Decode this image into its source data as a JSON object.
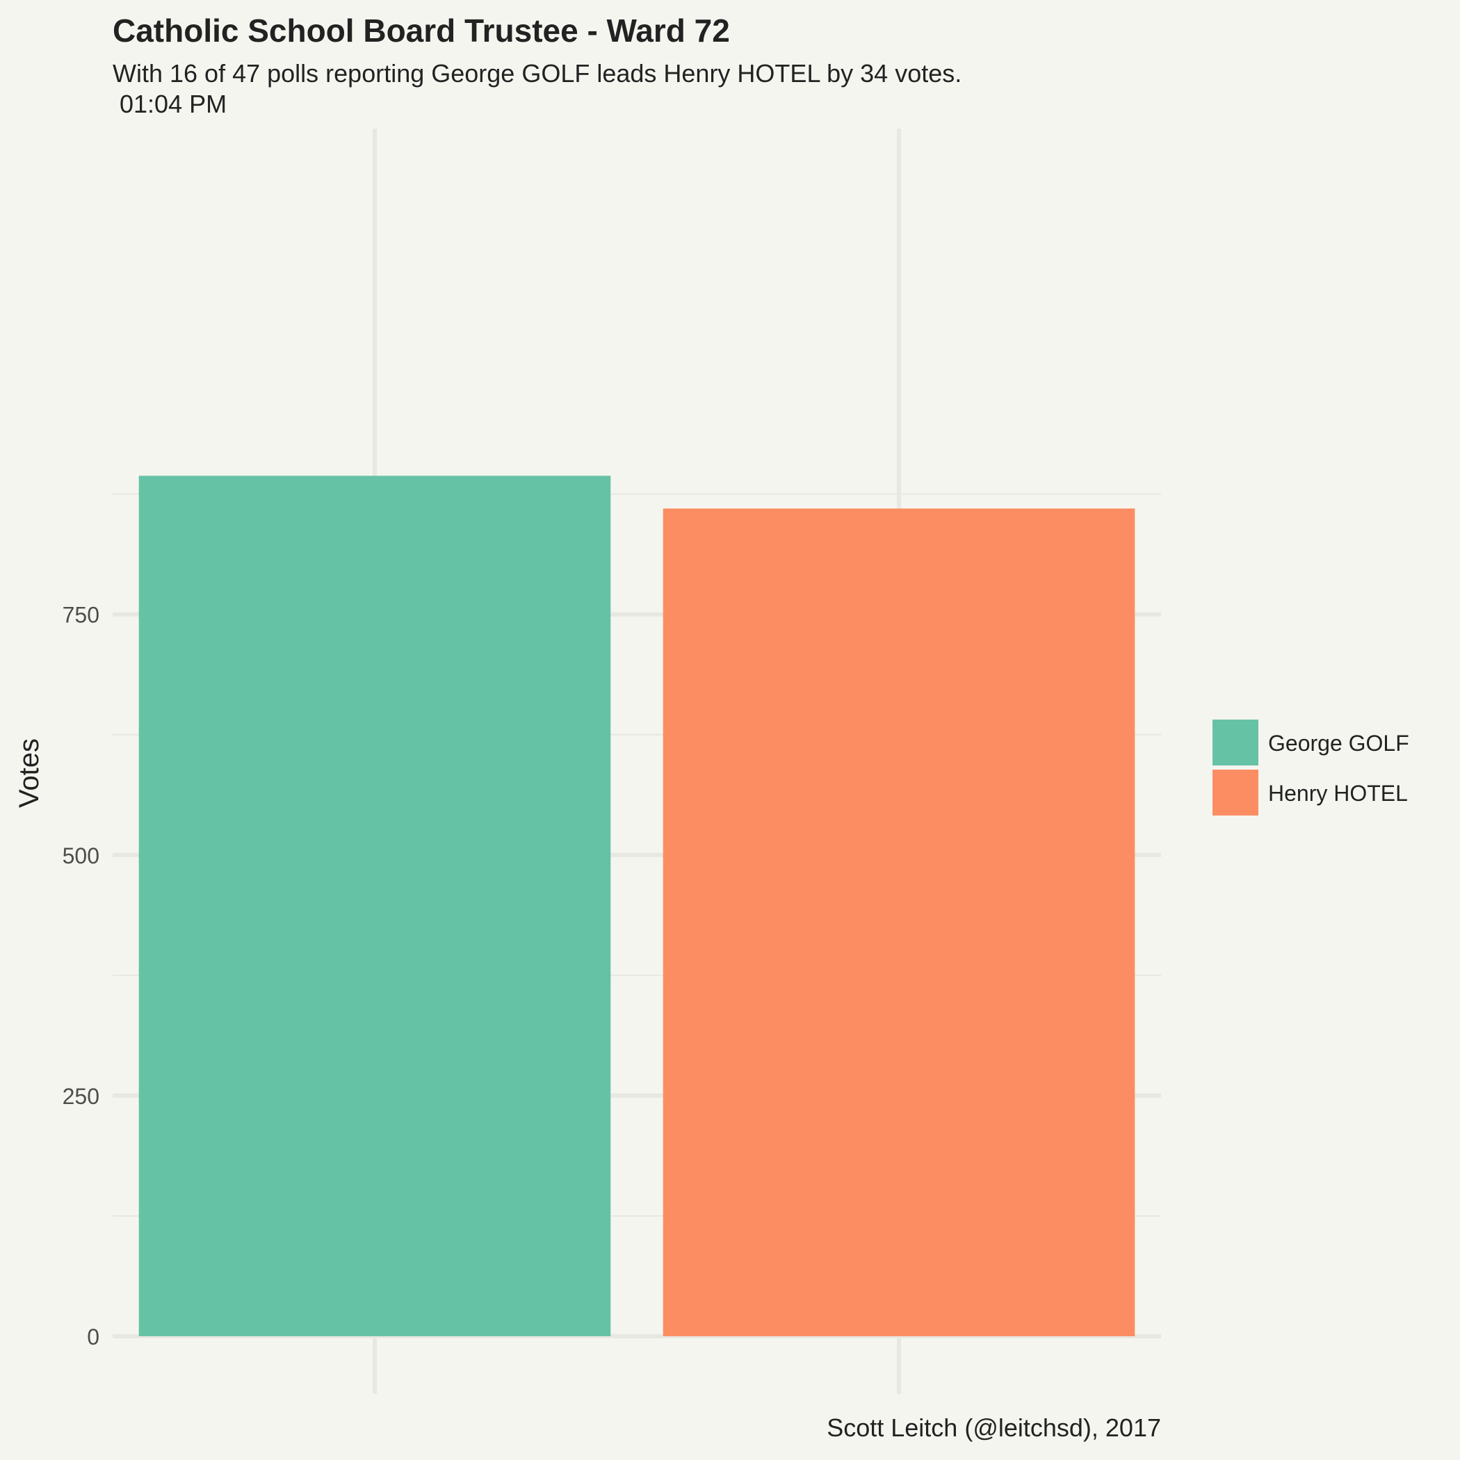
{
  "chart_data": {
    "type": "bar",
    "title": "Catholic School Board Trustee - Ward 72",
    "subtitle_line1": "With 16 of 47 polls reporting George GOLF leads Henry HOTEL by 34 votes.",
    "subtitle_line2": " 01:04 PM",
    "xlabel": "",
    "ylabel": "Votes",
    "ylim": [
      0,
      930
    ],
    "yticks": [
      0,
      250,
      500,
      750
    ],
    "ytick_labels": [
      "0",
      "250",
      "500",
      "750"
    ],
    "categories": [
      "George GOLF",
      "Henry HOTEL"
    ],
    "values": [
      894,
      860
    ],
    "colors": [
      "#66c2a5",
      "#fc8d62"
    ],
    "legend": {
      "position": "right",
      "entries": [
        "George GOLF",
        "Henry HOTEL"
      ]
    },
    "caption": "Scott Leitch (@leitchsd), 2017",
    "grid": true
  }
}
